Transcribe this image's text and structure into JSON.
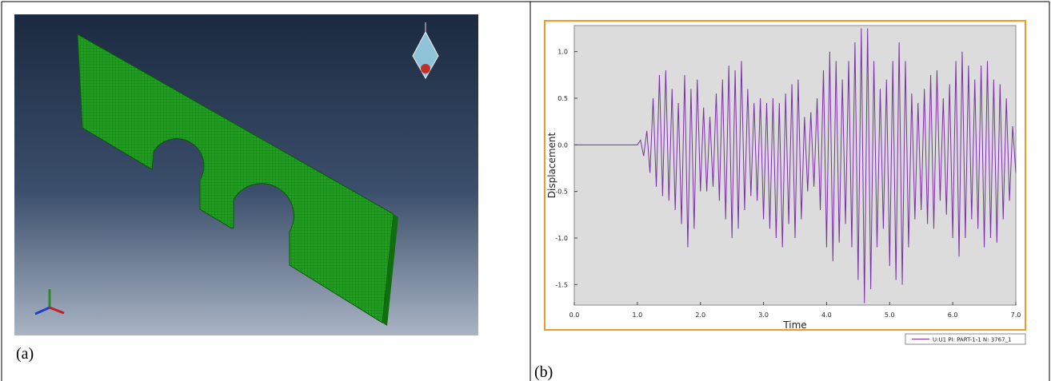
{
  "panels": {
    "a": {
      "label": "(a)"
    },
    "b": {
      "label": "(b)"
    }
  },
  "chart_data": {
    "type": "line",
    "xlabel": "Time",
    "ylabel": "Displacement",
    "xlim": [
      0,
      7.0
    ],
    "ylim": [
      -1.72,
      1.28
    ],
    "xticks": [
      {
        "value": 0,
        "label": "0.0"
      },
      {
        "value": 1,
        "label": "1.0"
      },
      {
        "value": 2,
        "label": "2.0"
      },
      {
        "value": 3,
        "label": "3.0"
      },
      {
        "value": 4,
        "label": "4.0"
      },
      {
        "value": 5,
        "label": "5.0"
      },
      {
        "value": 6,
        "label": "6.0"
      },
      {
        "value": 7,
        "label": "7.0"
      }
    ],
    "yticks": [
      -1.5,
      {
        "value": -1,
        "label": "-1.0"
      },
      -0.5,
      {
        "value": 0,
        "label": "0.0"
      },
      0.5,
      {
        "value": 1,
        "label": "1.0"
      }
    ],
    "grid": false,
    "x": [
      0,
      1.0,
      1.05,
      1.1,
      1.15,
      1.2,
      1.25,
      1.3,
      1.35,
      1.4,
      1.45,
      1.5,
      1.55,
      1.6,
      1.65,
      1.7,
      1.75,
      1.8,
      1.85,
      1.9,
      1.95,
      2.0,
      2.05,
      2.1,
      2.15,
      2.2,
      2.25,
      2.3,
      2.35,
      2.4,
      2.45,
      2.5,
      2.55,
      2.6,
      2.65,
      2.7,
      2.75,
      2.8,
      2.85,
      2.9,
      2.95,
      3.0,
      3.05,
      3.1,
      3.15,
      3.2,
      3.25,
      3.3,
      3.35,
      3.4,
      3.45,
      3.5,
      3.55,
      3.6,
      3.65,
      3.7,
      3.75,
      3.8,
      3.85,
      3.9,
      3.95,
      4.0,
      4.05,
      4.1,
      4.15,
      4.2,
      4.25,
      4.3,
      4.35,
      4.4,
      4.45,
      4.5,
      4.55,
      4.6,
      4.65,
      4.7,
      4.75,
      4.8,
      4.85,
      4.9,
      4.95,
      5.0,
      5.05,
      5.1,
      5.15,
      5.2,
      5.25,
      5.3,
      5.35,
      5.4,
      5.45,
      5.5,
      5.55,
      5.6,
      5.65,
      5.7,
      5.75,
      5.8,
      5.85,
      5.9,
      5.95,
      6.0,
      6.05,
      6.1,
      6.15,
      6.2,
      6.25,
      6.3,
      6.35,
      6.4,
      6.45,
      6.5,
      6.55,
      6.6,
      6.65,
      6.7,
      6.75,
      6.8,
      6.85,
      6.9,
      6.95,
      7.0
    ],
    "series": [
      {
        "name": "U:U1 PI: PART-1-1 N: 3767_1",
        "color": "#7b2fa8",
        "values": [
          0,
          0,
          0.05,
          -0.12,
          0.15,
          -0.3,
          0.5,
          -0.45,
          0.75,
          -0.55,
          0.8,
          -0.6,
          0.6,
          -0.7,
          0.45,
          -0.85,
          0.75,
          -1.1,
          0.6,
          -0.9,
          0.7,
          -0.5,
          0.4,
          -0.5,
          0.3,
          -0.45,
          0.55,
          -0.6,
          0.7,
          -0.8,
          0.85,
          -1.0,
          0.8,
          -0.9,
          0.9,
          -0.7,
          0.6,
          -0.55,
          0.45,
          -0.6,
          0.5,
          -0.8,
          0.45,
          -0.9,
          0.5,
          -1.0,
          0.45,
          -1.1,
          0.55,
          -0.85,
          0.65,
          -1.0,
          0.7,
          -0.8,
          0.3,
          -0.5,
          0.35,
          -0.45,
          0.5,
          -0.7,
          0.8,
          -1.1,
          1.0,
          -1.25,
          0.9,
          -1.05,
          0.7,
          -0.85,
          0.9,
          -1.1,
          1.1,
          -1.45,
          1.25,
          -1.7,
          1.25,
          -1.55,
          0.9,
          -1.1,
          0.6,
          -0.9,
          0.7,
          -1.3,
          0.9,
          -1.45,
          1.1,
          -1.5,
          0.9,
          -1.1,
          0.55,
          -0.8,
          0.45,
          -0.7,
          0.6,
          -0.85,
          0.75,
          -0.9,
          0.8,
          -0.6,
          0.5,
          -0.75,
          0.65,
          -1.0,
          0.9,
          -1.2,
          1.0,
          -1.0,
          0.85,
          -0.8,
          0.7,
          -0.9,
          0.85,
          -1.1,
          0.9,
          -1.0,
          0.7,
          -1.05,
          0.65,
          -0.8,
          0.5,
          -0.6,
          0.2,
          -0.3
        ]
      }
    ]
  }
}
